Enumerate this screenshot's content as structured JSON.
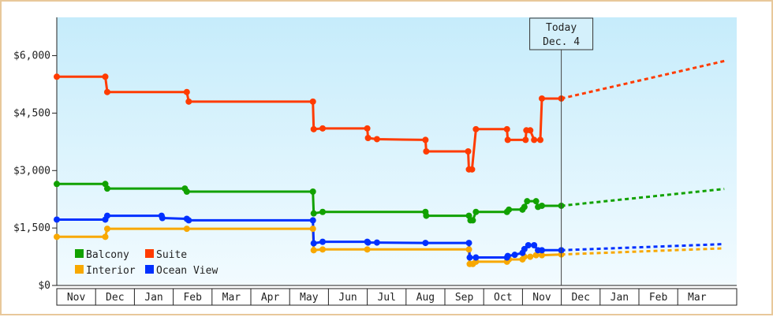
{
  "chart_data": {
    "type": "line",
    "title": "",
    "xlabel": "",
    "ylabel": "",
    "y_ticks": [
      "$0",
      "$1,500",
      "$3,000",
      "$4,500",
      "$6,000"
    ],
    "y_tick_values": [
      0,
      1500,
      3000,
      4500,
      6000
    ],
    "ylim": [
      0,
      7000
    ],
    "months": [
      "Nov",
      "Dec",
      "Jan",
      "Feb",
      "Mar",
      "Apr",
      "May",
      "Jun",
      "Jul",
      "Aug",
      "Sep",
      "Oct",
      "Nov",
      "Dec",
      "Jan",
      "Feb",
      "Mar"
    ],
    "today": {
      "line1": "Today",
      "line2": "Dec. 4",
      "index": 13
    },
    "legend_position": "bottom-left",
    "series": [
      {
        "name": "Suite",
        "color": "#ff3b00",
        "points": [
          [
            0,
            5450
          ],
          [
            1.25,
            5450
          ],
          [
            1.3,
            5050
          ],
          [
            3.35,
            5050
          ],
          [
            3.4,
            4800
          ],
          [
            6.6,
            4800
          ],
          [
            6.62,
            4080
          ],
          [
            6.85,
            4100
          ],
          [
            8.0,
            4100
          ],
          [
            8.02,
            3850
          ],
          [
            8.25,
            3820
          ],
          [
            9.5,
            3800
          ],
          [
            9.52,
            3500
          ],
          [
            10.6,
            3500
          ],
          [
            10.62,
            3030
          ],
          [
            10.7,
            3030
          ],
          [
            10.8,
            4080
          ],
          [
            11.6,
            4080
          ],
          [
            11.62,
            3800
          ],
          [
            12.08,
            3800
          ],
          [
            12.1,
            4050
          ],
          [
            12.2,
            4050
          ],
          [
            12.3,
            3800
          ],
          [
            12.46,
            3800
          ],
          [
            12.5,
            4880
          ],
          [
            13.0,
            4880
          ]
        ],
        "forecast": [
          [
            13.0,
            4880
          ],
          [
            17.2,
            5860
          ]
        ]
      },
      {
        "name": "Balcony",
        "color": "#11a100",
        "points": [
          [
            0,
            2650
          ],
          [
            1.25,
            2650
          ],
          [
            1.3,
            2530
          ],
          [
            3.3,
            2530
          ],
          [
            3.35,
            2450
          ],
          [
            6.6,
            2450
          ],
          [
            6.62,
            1880
          ],
          [
            6.85,
            1920
          ],
          [
            9.5,
            1920
          ],
          [
            9.52,
            1820
          ],
          [
            10.62,
            1820
          ],
          [
            10.66,
            1700
          ],
          [
            10.72,
            1700
          ],
          [
            10.8,
            1920
          ],
          [
            11.6,
            1920
          ],
          [
            11.65,
            1980
          ],
          [
            12.0,
            1980
          ],
          [
            12.05,
            2050
          ],
          [
            12.12,
            2200
          ],
          [
            12.35,
            2200
          ],
          [
            12.4,
            2050
          ],
          [
            12.5,
            2080
          ],
          [
            13.0,
            2080
          ]
        ],
        "forecast": [
          [
            13.0,
            2080
          ],
          [
            17.2,
            2520
          ]
        ]
      },
      {
        "name": "Ocean View",
        "color": "#0030ff",
        "points": [
          [
            0,
            1720
          ],
          [
            1.25,
            1720
          ],
          [
            1.3,
            1820
          ],
          [
            2.7,
            1820
          ],
          [
            2.72,
            1760
          ],
          [
            3.35,
            1740
          ],
          [
            3.4,
            1700
          ],
          [
            6.6,
            1700
          ],
          [
            6.62,
            1100
          ],
          [
            6.85,
            1140
          ],
          [
            8.0,
            1140
          ],
          [
            8.02,
            1120
          ],
          [
            8.25,
            1120
          ],
          [
            9.5,
            1110
          ],
          [
            10.62,
            1110
          ],
          [
            10.64,
            730
          ],
          [
            10.8,
            730
          ],
          [
            11.6,
            730
          ],
          [
            11.62,
            770
          ],
          [
            11.8,
            800
          ],
          [
            12.0,
            850
          ],
          [
            12.05,
            950
          ],
          [
            12.15,
            1050
          ],
          [
            12.3,
            1050
          ],
          [
            12.4,
            920
          ],
          [
            12.5,
            920
          ],
          [
            13.0,
            920
          ]
        ],
        "forecast": [
          [
            13.0,
            920
          ],
          [
            17.2,
            1080
          ]
        ]
      },
      {
        "name": "Interior",
        "color": "#f8a800",
        "points": [
          [
            0,
            1270
          ],
          [
            1.25,
            1270
          ],
          [
            1.3,
            1480
          ],
          [
            3.35,
            1480
          ],
          [
            6.6,
            1480
          ],
          [
            6.62,
            920
          ],
          [
            6.85,
            940
          ],
          [
            8.0,
            940
          ],
          [
            10.62,
            940
          ],
          [
            10.64,
            560
          ],
          [
            10.72,
            560
          ],
          [
            10.8,
            620
          ],
          [
            11.6,
            620
          ],
          [
            11.65,
            680
          ],
          [
            12.0,
            680
          ],
          [
            12.05,
            750
          ],
          [
            12.2,
            750
          ],
          [
            12.35,
            790
          ],
          [
            12.5,
            790
          ],
          [
            13.0,
            810
          ]
        ],
        "forecast": [
          [
            13.0,
            810
          ],
          [
            17.2,
            970
          ]
        ]
      }
    ]
  }
}
